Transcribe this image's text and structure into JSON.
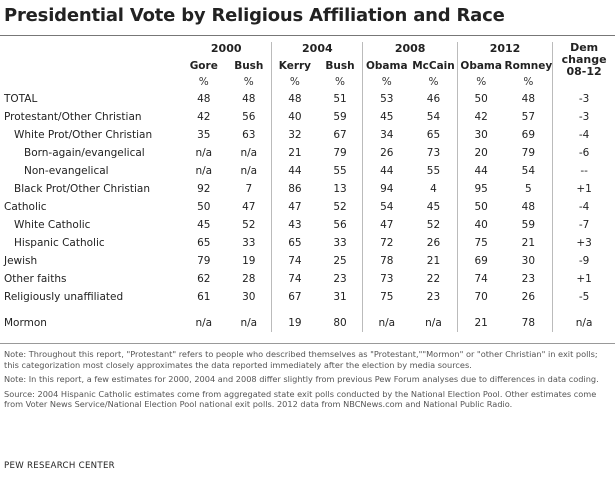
{
  "title": "Presidential Vote by Religious Affiliation and Race",
  "years": [
    "2000",
    "2004",
    "2008",
    "2012"
  ],
  "dem_change_header": [
    "Dem",
    "change",
    "08-12"
  ],
  "candidates": [
    "Gore",
    "Bush",
    "Kerry",
    "Bush",
    "Obama",
    "McCain",
    "Obama",
    "Romney"
  ],
  "pct_sign": "%",
  "rows": [
    {
      "label": "TOTAL",
      "indent": 0,
      "values": [
        "48",
        "48",
        "48",
        "51",
        "53",
        "46",
        "50",
        "48",
        "-3"
      ]
    },
    {
      "label": "Protestant/Other Christian",
      "indent": 0,
      "values": [
        "42",
        "56",
        "40",
        "59",
        "45",
        "54",
        "42",
        "57",
        "-3"
      ]
    },
    {
      "label": "White Prot/Other Christian",
      "indent": 1,
      "values": [
        "35",
        "63",
        "32",
        "67",
        "34",
        "65",
        "30",
        "69",
        "-4"
      ]
    },
    {
      "label": "Born-again/evangelical",
      "indent": 2,
      "values": [
        "n/a",
        "n/a",
        "21",
        "79",
        "26",
        "73",
        "20",
        "79",
        "-6"
      ]
    },
    {
      "label": "Non-evangelical",
      "indent": 2,
      "values": [
        "n/a",
        "n/a",
        "44",
        "55",
        "44",
        "55",
        "44",
        "54",
        "--"
      ]
    },
    {
      "label": "Black Prot/Other Christian",
      "indent": 1,
      "values": [
        "92",
        "7",
        "86",
        "13",
        "94",
        "4",
        "95",
        "5",
        "+1"
      ]
    },
    {
      "label": "Catholic",
      "indent": 0,
      "values": [
        "50",
        "47",
        "47",
        "52",
        "54",
        "45",
        "50",
        "48",
        "-4"
      ]
    },
    {
      "label": "White Catholic",
      "indent": 1,
      "values": [
        "45",
        "52",
        "43",
        "56",
        "47",
        "52",
        "40",
        "59",
        "-7"
      ]
    },
    {
      "label": "Hispanic Catholic",
      "indent": 1,
      "values": [
        "65",
        "33",
        "65",
        "33",
        "72",
        "26",
        "75",
        "21",
        "+3"
      ]
    },
    {
      "label": "Jewish",
      "indent": 0,
      "values": [
        "79",
        "19",
        "74",
        "25",
        "78",
        "21",
        "69",
        "30",
        "-9"
      ]
    },
    {
      "label": "Other faiths",
      "indent": 0,
      "values": [
        "62",
        "28",
        "74",
        "23",
        "73",
        "22",
        "74",
        "23",
        "+1"
      ]
    },
    {
      "label": "Religiously unaffiliated",
      "indent": 0,
      "values": [
        "61",
        "30",
        "67",
        "31",
        "75",
        "23",
        "70",
        "26",
        "-5"
      ]
    },
    {
      "label": "Mormon",
      "indent": 0,
      "values": [
        "n/a",
        "n/a",
        "19",
        "80",
        "n/a",
        "n/a",
        "21",
        "78",
        "n/a"
      ]
    }
  ],
  "notes": [
    "Note: Throughout this report, \"Protestant\" refers to people who described themselves as \"Protestant,\"\"Mormon\" or \"other Christian\" in exit polls; this categorization most closely approximates the data reported immediately after the election by media sources.",
    "Note: In this report, a few estimates for 2000, 2004 and 2008 differ slightly from previous Pew Forum analyses due to differences in data coding.",
    "Source: 2004 Hispanic Catholic estimates come from aggregated state exit polls conducted by the National Election Pool. Other estimates come from Voter News Service/National Election Pool national exit polls. 2012 data from NBCNews.com and National Public Radio."
  ],
  "source_org": "PEW RESEARCH CENTER"
}
